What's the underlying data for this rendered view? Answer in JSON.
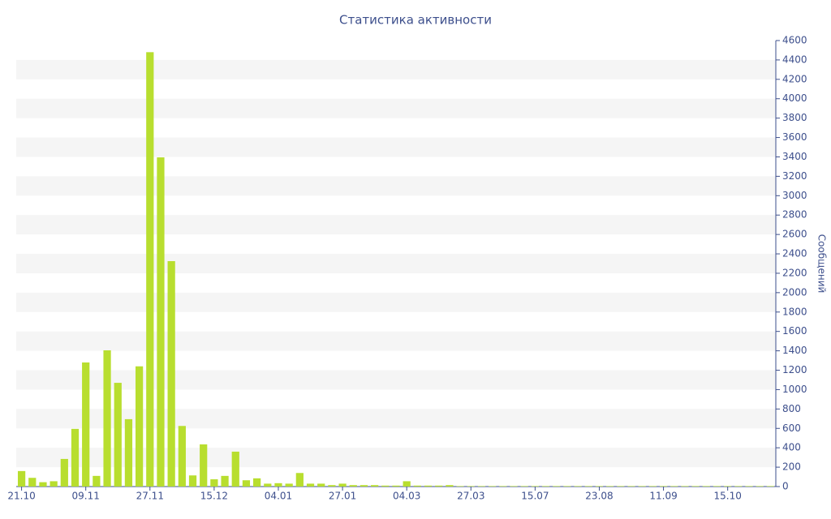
{
  "chart_data": {
    "type": "bar",
    "title": "Статистика активности",
    "y_label": "Сообщений",
    "categories": [
      "21.10",
      null,
      null,
      null,
      null,
      null,
      "09.11",
      null,
      null,
      null,
      null,
      null,
      "27.11",
      null,
      null,
      null,
      null,
      null,
      "15.12",
      null,
      null,
      null,
      null,
      null,
      "04.01",
      null,
      null,
      null,
      null,
      null,
      "27.01",
      null,
      null,
      null,
      null,
      null,
      "04.03",
      null,
      null,
      null,
      null,
      null,
      "27.03",
      null,
      null,
      null,
      null,
      null,
      "15.07",
      null,
      null,
      null,
      null,
      null,
      "23.08",
      null,
      null,
      null,
      null,
      null,
      "11.09",
      null,
      null,
      null,
      null,
      null,
      "15.10",
      null,
      null,
      null,
      null
    ],
    "values": [
      160,
      90,
      45,
      55,
      285,
      595,
      1280,
      110,
      1405,
      1070,
      695,
      1240,
      4480,
      3395,
      2325,
      625,
      115,
      435,
      75,
      110,
      360,
      65,
      85,
      30,
      35,
      30,
      140,
      30,
      30,
      15,
      30,
      15,
      15,
      15,
      10,
      10,
      55,
      10,
      10,
      10,
      15,
      5,
      5,
      5,
      5,
      5,
      5,
      5,
      5,
      5,
      5,
      5,
      5,
      5,
      5,
      5,
      5,
      5,
      5,
      5,
      5,
      5,
      5,
      5,
      5,
      5,
      5,
      5,
      5,
      5,
      5
    ],
    "color": "#b8de2f",
    "ylim": [
      0,
      4600
    ],
    "yticks": [
      0,
      200,
      400,
      600,
      800,
      1000,
      1200,
      1400,
      1600,
      1800,
      2000,
      2200,
      2400,
      2600,
      2800,
      3000,
      3200,
      3400,
      3600,
      3800,
      4000,
      4200,
      4400,
      4600
    ],
    "grid": true
  }
}
